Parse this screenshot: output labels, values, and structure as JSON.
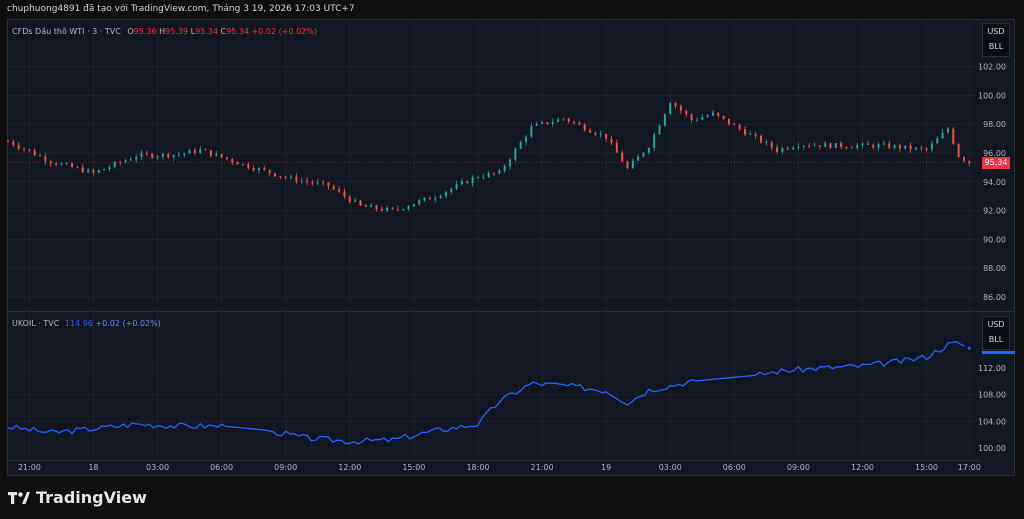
{
  "caption": "chuphuong4891 đã tạo với TradingView.com, Tháng 3 19, 2026 17:03 UTC+7",
  "pane1": {
    "symbol": "CFDs Dầu thô WTI · 3 · TVC",
    "o_label": "O",
    "o": "95.36",
    "h_label": "H",
    "h": "95.39",
    "l_label": "L",
    "l": "95.34",
    "c_label": "C",
    "c": "95.34",
    "change": "+0.02 (+0.02%)",
    "unit_currency": "USD",
    "unit_measure": "BLL",
    "last_price": "95.34",
    "y_ticks": [
      "102.00",
      "100.00",
      "98.00",
      "96.00",
      "94.00",
      "92.00",
      "90.00",
      "88.00",
      "86.00"
    ]
  },
  "pane2": {
    "symbol": "UKOIL · TVC",
    "last": "114.96",
    "change": "+0.02 (+0.02%)",
    "unit_currency": "USD",
    "unit_measure": "BLL",
    "y_ticks": [
      "112.00",
      "108.00",
      "104.00",
      "100.00"
    ]
  },
  "x_ticks": [
    "21:00",
    "18",
    "03:00",
    "06:00",
    "09:00",
    "12:00",
    "15:00",
    "18:00",
    "21:00",
    "19",
    "03:00",
    "06:00",
    "09:00",
    "12:00",
    "15:00",
    "17:00"
  ],
  "brand": "TradingView",
  "colors": {
    "up": "#26a69a",
    "down": "#ef5350",
    "line": "#2962ff",
    "bg": "#131722",
    "grid": "#1e222d"
  },
  "chart_data": [
    {
      "type": "candlestick",
      "title": "CFDs Dầu thô WTI · 3 · TVC",
      "ylim": [
        85,
        103
      ],
      "x": [
        "17 20:00",
        "17 22:00",
        "18 00:00",
        "18 02:00",
        "18 04:00",
        "18 05:00",
        "18 07:00",
        "18 09:00",
        "18 11:00",
        "18 12:30",
        "18 14:00",
        "18 16:00",
        "18 18:00",
        "18 19:00",
        "18 20:30",
        "18 22:00",
        "19 00:00",
        "19 01:00",
        "19 02:00",
        "19 03:00",
        "19 04:00",
        "19 05:00",
        "19 08:00",
        "19 09:00",
        "19 11:00",
        "19 13:00",
        "19 15:00",
        "19 16:00",
        "19 16:30",
        "19 17:00"
      ],
      "values": [
        96.8,
        95.4,
        94.6,
        95.8,
        95.9,
        96.2,
        95.2,
        94.3,
        93.7,
        92.3,
        92.0,
        93.0,
        94.4,
        94.6,
        97.8,
        98.4,
        97.1,
        94.9,
        96.5,
        99.6,
        98.3,
        98.7,
        96.2,
        96.6,
        96.5,
        96.5,
        96.2,
        97.7,
        95.8,
        95.34
      ],
      "last": 95.34
    },
    {
      "type": "line",
      "title": "UKOIL · TVC",
      "ylim": [
        99,
        116
      ],
      "x": [
        "17 20:00",
        "17 22:00",
        "18 00:00",
        "18 02:00",
        "18 04:00",
        "18 06:00",
        "18 08:00",
        "18 10:00",
        "18 12:00",
        "18 14:00",
        "18 16:00",
        "18 18:00",
        "18 19:00",
        "18 20:30",
        "18 22:00",
        "19 00:00",
        "19 01:00",
        "19 02:00",
        "19 04:00",
        "19 07:00",
        "19 08:00",
        "19 10:00",
        "19 12:00",
        "19 14:00",
        "19 15:00",
        "19 16:00",
        "19 16:30",
        "19 17:00"
      ],
      "values": [
        103.2,
        102.3,
        102.9,
        103.6,
        103.3,
        103.3,
        102.7,
        101.5,
        101.0,
        101.2,
        102.6,
        103.6,
        107.0,
        109.7,
        109.4,
        108.6,
        106.8,
        108.7,
        110.0,
        110.9,
        111.5,
        112.0,
        112.3,
        113.1,
        113.7,
        115.5,
        115.8,
        114.96
      ],
      "last": 114.96
    }
  ]
}
